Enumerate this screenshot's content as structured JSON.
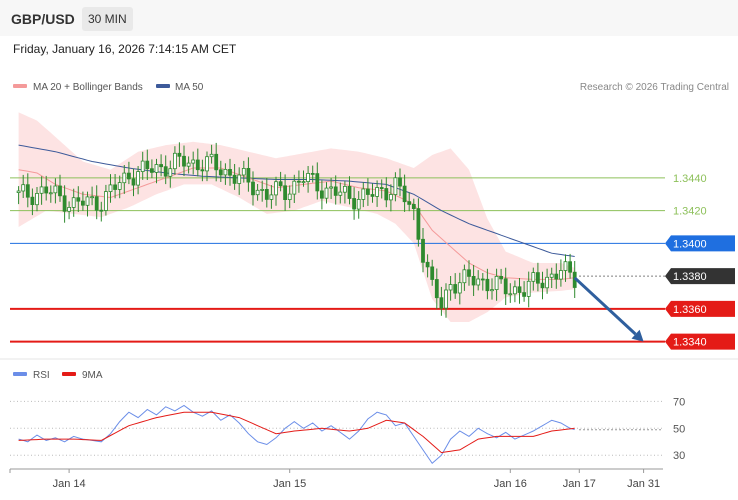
{
  "header": {
    "pair": "GBP/USD",
    "timeframe": "30 MIN",
    "datetime": "Friday, January 16, 2026 7:14:15 AM CET",
    "copyright": "Research © 2026 Trading Central"
  },
  "colors": {
    "bb_fill": "#fde3e3",
    "ma20": "#f49a9a",
    "ma50": "#3d5a9a",
    "candle": "#2f8a2f",
    "resistance": "#8dc05a",
    "pivot": "#1f6fe0",
    "support": "#e41b17",
    "last": "#333333",
    "rsi": "#6b8ee8",
    "rsi_ma": "#e41b17"
  },
  "chart_data": [
    {
      "type": "candlestick",
      "legend": [
        {
          "name": "MA 20 + Bollinger Bands",
          "color": "#f49a9a"
        },
        {
          "name": "MA 50",
          "color": "#3d5a9a"
        }
      ],
      "ylim": [
        1.333,
        1.349
      ],
      "last_price": 1.338,
      "levels": [
        {
          "value": 1.344,
          "label": "1.3440",
          "kind": "resistance"
        },
        {
          "value": 1.342,
          "label": "1.3420",
          "kind": "resistance"
        },
        {
          "value": 1.34,
          "label": "1.3400",
          "kind": "pivot"
        },
        {
          "value": 1.336,
          "label": "1.3360",
          "kind": "support"
        },
        {
          "value": 1.334,
          "label": "1.3340",
          "kind": "support"
        }
      ],
      "x_ticks": [
        {
          "label": "Jan 14",
          "index": 11
        },
        {
          "label": "Jan 15",
          "index": 59
        },
        {
          "label": "Jan 16",
          "index": 107
        },
        {
          "label": "Jan 17",
          "index": 122
        },
        {
          "label": "Jan 31",
          "index": 136
        }
      ],
      "x_range": [
        -1,
        140
      ],
      "forecast_arrow": {
        "from": {
          "index": 121,
          "value": 1.3379
        },
        "to": {
          "index": 136,
          "value": 1.334
        }
      },
      "close_anchors": [
        [
          0,
          1.3429
        ],
        [
          6,
          1.3432
        ],
        [
          12,
          1.3424
        ],
        [
          18,
          1.3426
        ],
        [
          24,
          1.3442
        ],
        [
          30,
          1.3446
        ],
        [
          36,
          1.345
        ],
        [
          42,
          1.3448
        ],
        [
          48,
          1.344
        ],
        [
          54,
          1.343
        ],
        [
          58,
          1.3432
        ],
        [
          62,
          1.344
        ],
        [
          66,
          1.3434
        ],
        [
          72,
          1.3428
        ],
        [
          78,
          1.343
        ],
        [
          82,
          1.3436
        ],
        [
          86,
          1.3418
        ],
        [
          88,
          1.3395
        ],
        [
          90,
          1.3372
        ],
        [
          92,
          1.3362
        ],
        [
          94,
          1.3376
        ],
        [
          100,
          1.3378
        ],
        [
          106,
          1.3372
        ],
        [
          110,
          1.3372
        ],
        [
          114,
          1.3378
        ],
        [
          118,
          1.3383
        ],
        [
          121,
          1.3379
        ]
      ],
      "bb_upper_anchors": [
        [
          0,
          1.348
        ],
        [
          4,
          1.3475
        ],
        [
          8,
          1.3465
        ],
        [
          14,
          1.345
        ],
        [
          20,
          1.3445
        ],
        [
          26,
          1.3456
        ],
        [
          32,
          1.346
        ],
        [
          38,
          1.3462
        ],
        [
          44,
          1.346
        ],
        [
          50,
          1.3456
        ],
        [
          56,
          1.3452
        ],
        [
          62,
          1.3455
        ],
        [
          68,
          1.3458
        ],
        [
          74,
          1.3456
        ],
        [
          80,
          1.3452
        ],
        [
          86,
          1.3446
        ],
        [
          90,
          1.3454
        ],
        [
          94,
          1.3458
        ],
        [
          98,
          1.3445
        ],
        [
          102,
          1.3415
        ],
        [
          106,
          1.3395
        ],
        [
          112,
          1.3388
        ],
        [
          118,
          1.3388
        ],
        [
          121,
          1.3385
        ]
      ],
      "bb_lower_anchors": [
        [
          0,
          1.341
        ],
        [
          6,
          1.342
        ],
        [
          12,
          1.3418
        ],
        [
          18,
          1.3416
        ],
        [
          24,
          1.3422
        ],
        [
          30,
          1.343
        ],
        [
          36,
          1.3436
        ],
        [
          42,
          1.3436
        ],
        [
          48,
          1.3428
        ],
        [
          54,
          1.3418
        ],
        [
          60,
          1.342
        ],
        [
          66,
          1.3426
        ],
        [
          72,
          1.3422
        ],
        [
          78,
          1.3418
        ],
        [
          82,
          1.3412
        ],
        [
          86,
          1.34
        ],
        [
          90,
          1.3366
        ],
        [
          94,
          1.3352
        ],
        [
          98,
          1.3352
        ],
        [
          102,
          1.3358
        ],
        [
          106,
          1.3367
        ],
        [
          112,
          1.337
        ],
        [
          118,
          1.3371
        ],
        [
          121,
          1.3372
        ]
      ],
      "ma20_anchors": [
        [
          0,
          1.3445
        ],
        [
          4,
          1.3443
        ],
        [
          8,
          1.3436
        ],
        [
          14,
          1.343
        ],
        [
          20,
          1.3428
        ],
        [
          26,
          1.3434
        ],
        [
          32,
          1.344
        ],
        [
          38,
          1.3446
        ],
        [
          44,
          1.3446
        ],
        [
          50,
          1.344
        ],
        [
          56,
          1.3434
        ],
        [
          62,
          1.3436
        ],
        [
          68,
          1.3438
        ],
        [
          74,
          1.3434
        ],
        [
          80,
          1.3432
        ],
        [
          86,
          1.3424
        ],
        [
          90,
          1.3408
        ],
        [
          94,
          1.3398
        ],
        [
          98,
          1.3388
        ],
        [
          102,
          1.3382
        ],
        [
          106,
          1.3379
        ],
        [
          112,
          1.3378
        ],
        [
          118,
          1.3378
        ],
        [
          121,
          1.3379
        ]
      ],
      "ma50_anchors": [
        [
          0,
          1.346
        ],
        [
          8,
          1.3456
        ],
        [
          16,
          1.345
        ],
        [
          24,
          1.3446
        ],
        [
          32,
          1.3443
        ],
        [
          40,
          1.3441
        ],
        [
          48,
          1.344
        ],
        [
          56,
          1.3439
        ],
        [
          64,
          1.3439
        ],
        [
          72,
          1.3438
        ],
        [
          80,
          1.3436
        ],
        [
          86,
          1.343
        ],
        [
          92,
          1.342
        ],
        [
          98,
          1.3412
        ],
        [
          104,
          1.3406
        ],
        [
          110,
          1.34
        ],
        [
          116,
          1.3394
        ],
        [
          121,
          1.3392
        ]
      ]
    },
    {
      "type": "line",
      "legend": [
        {
          "name": "RSI",
          "color": "#6b8ee8"
        },
        {
          "name": "9MA",
          "color": "#e41b17"
        }
      ],
      "ylim": [
        22,
        80
      ],
      "y_ticks": [
        70,
        50,
        30
      ],
      "series": [
        {
          "name": "RSI",
          "anchors": [
            [
              0,
              42
            ],
            [
              2,
              40
            ],
            [
              4,
              45
            ],
            [
              6,
              41
            ],
            [
              8,
              43
            ],
            [
              10,
              40
            ],
            [
              12,
              44
            ],
            [
              14,
              42
            ],
            [
              16,
              41
            ],
            [
              18,
              40
            ],
            [
              20,
              46
            ],
            [
              22,
              55
            ],
            [
              24,
              62
            ],
            [
              26,
              58
            ],
            [
              28,
              64
            ],
            [
              30,
              60
            ],
            [
              32,
              66
            ],
            [
              34,
              63
            ],
            [
              36,
              67
            ],
            [
              38,
              62
            ],
            [
              40,
              59
            ],
            [
              42,
              63
            ],
            [
              44,
              56
            ],
            [
              46,
              60
            ],
            [
              48,
              54
            ],
            [
              50,
              46
            ],
            [
              52,
              40
            ],
            [
              54,
              38
            ],
            [
              56,
              43
            ],
            [
              58,
              50
            ],
            [
              60,
              55
            ],
            [
              62,
              50
            ],
            [
              64,
              54
            ],
            [
              66,
              48
            ],
            [
              68,
              52
            ],
            [
              70,
              47
            ],
            [
              72,
              42
            ],
            [
              74,
              48
            ],
            [
              76,
              57
            ],
            [
              78,
              62
            ],
            [
              80,
              60
            ],
            [
              82,
              52
            ],
            [
              84,
              54
            ],
            [
              86,
              44
            ],
            [
              88,
              34
            ],
            [
              90,
              24
            ],
            [
              92,
              30
            ],
            [
              94,
              42
            ],
            [
              96,
              48
            ],
            [
              98,
              44
            ],
            [
              100,
              50
            ],
            [
              102,
              46
            ],
            [
              104,
              43
            ],
            [
              106,
              47
            ],
            [
              108,
              42
            ],
            [
              110,
              45
            ],
            [
              112,
              48
            ],
            [
              114,
              52
            ],
            [
              116,
              56
            ],
            [
              118,
              54
            ],
            [
              120,
              50
            ],
            [
              121,
              49
            ]
          ]
        },
        {
          "name": "9MA",
          "anchors": [
            [
              0,
              41
            ],
            [
              6,
              42
            ],
            [
              12,
              42
            ],
            [
              18,
              41
            ],
            [
              24,
              52
            ],
            [
              30,
              58
            ],
            [
              36,
              62
            ],
            [
              42,
              62
            ],
            [
              48,
              58
            ],
            [
              52,
              52
            ],
            [
              56,
              46
            ],
            [
              60,
              48
            ],
            [
              66,
              50
            ],
            [
              72,
              48
            ],
            [
              76,
              50
            ],
            [
              80,
              56
            ],
            [
              84,
              54
            ],
            [
              88,
              44
            ],
            [
              92,
              32
            ],
            [
              96,
              34
            ],
            [
              100,
              42
            ],
            [
              104,
              44
            ],
            [
              108,
              44
            ],
            [
              112,
              44
            ],
            [
              116,
              48
            ],
            [
              121,
              50
            ]
          ]
        }
      ]
    }
  ]
}
